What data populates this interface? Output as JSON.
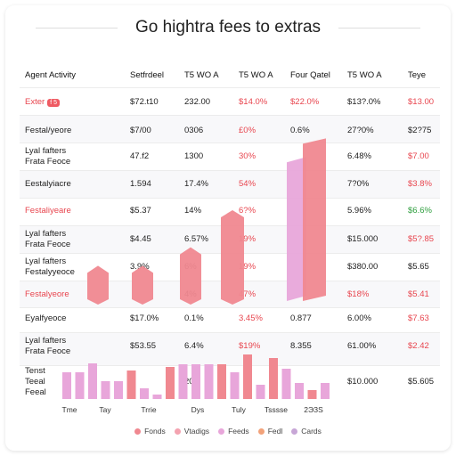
{
  "page": {
    "title": "Go hightra fees to extras"
  },
  "table": {
    "headers": [
      "Agent Activity",
      "Setfrdeel",
      "T5 WO A",
      "T5 WO A",
      "Four Qatel",
      "T5 WO A",
      "Teye"
    ],
    "rows": [
      {
        "label": [
          "Exter"
        ],
        "badge": "f 5",
        "label_color": "red",
        "cells": [
          {
            "v": "$72.t10"
          },
          {
            "v": "232.00"
          },
          {
            "v": "$14.0%",
            "c": "red"
          },
          {
            "v": "$22.0%",
            "c": "red"
          },
          {
            "v": "$13?.0%"
          },
          {
            "v": "$13.00",
            "c": "red"
          }
        ]
      },
      {
        "label": [
          "Festal/yeore"
        ],
        "cells": [
          {
            "v": "$7/00"
          },
          {
            "v": "0306"
          },
          {
            "v": "£0%",
            "c": "red"
          },
          {
            "v": "0.6%"
          },
          {
            "v": "27?0%"
          },
          {
            "v": "$2?75"
          }
        ]
      },
      {
        "label": [
          "Lyal fafters",
          "Frata Feoce"
        ],
        "cells": [
          {
            "v": "47.f2"
          },
          {
            "v": "1300"
          },
          {
            "v": "30%",
            "c": "red"
          },
          {
            "v": ""
          },
          {
            "v": "6.48%"
          },
          {
            "v": "$7.00",
            "c": "red"
          }
        ]
      },
      {
        "label": [
          "Eestalyiacre"
        ],
        "cells": [
          {
            "v": "1.594"
          },
          {
            "v": "17.4%"
          },
          {
            "v": "54%",
            "c": "red"
          },
          {
            "v": ""
          },
          {
            "v": "7?0%"
          },
          {
            "v": "$3.8%",
            "c": "red"
          }
        ]
      },
      {
        "label": [
          "Festaliyeare"
        ],
        "label_color": "red",
        "cells": [
          {
            "v": "$5.37"
          },
          {
            "v": "14%"
          },
          {
            "v": "6?%",
            "c": "red"
          },
          {
            "v": ""
          },
          {
            "v": "5.96%"
          },
          {
            "v": "$6.6%",
            "c": "green"
          }
        ]
      },
      {
        "label": [
          "Lyal fafters",
          "Frata Feoce"
        ],
        "cells": [
          {
            "v": "$4.45"
          },
          {
            "v": "6.57%"
          },
          {
            "v": "19%",
            "c": "red"
          },
          {
            "v": ""
          },
          {
            "v": "$15.000"
          },
          {
            "v": "$5?.85",
            "c": "red"
          }
        ]
      },
      {
        "label": [
          "Lyal fafters",
          "Festalyyeoce"
        ],
        "cells": [
          {
            "v": "3.9%"
          },
          {
            "v": "6%"
          },
          {
            "v": "19%",
            "c": "red"
          },
          {
            "v": ""
          },
          {
            "v": "$380.00"
          },
          {
            "v": "$5.65"
          }
        ]
      },
      {
        "label": [
          "Festalyeore"
        ],
        "label_color": "red",
        "cells": [
          {
            "v": ""
          },
          {
            "v": "4%"
          },
          {
            "v": "47%",
            "c": "red"
          },
          {
            "v": ""
          },
          {
            "v": "$18%",
            "c": "red"
          },
          {
            "v": "$5.41",
            "c": "red"
          }
        ]
      },
      {
        "label": [
          "Eyalfyeoce"
        ],
        "cells": [
          {
            "v": "$17.0%"
          },
          {
            "v": "0.1%"
          },
          {
            "v": "3.45%",
            "c": "red"
          },
          {
            "v": "0.877"
          },
          {
            "v": "6.00%"
          },
          {
            "v": "$7.63",
            "c": "red"
          }
        ]
      },
      {
        "label": [
          "Lyal fafters",
          "Frata Feoce"
        ],
        "cells": [
          {
            "v": "$53.55"
          },
          {
            "v": "6.4%"
          },
          {
            "v": "$19%",
            "c": "red"
          },
          {
            "v": "8.355"
          },
          {
            "v": "61.00%"
          },
          {
            "v": "$2.42",
            "c": "red"
          }
        ]
      },
      {
        "label": [
          "Tenst",
          "Teeal",
          "Feeal"
        ],
        "cells": [
          {
            "v": ""
          },
          {
            "v": "200"
          },
          {
            "v": ""
          },
          {
            "v": ""
          },
          {
            "v": "$10.000"
          },
          {
            "v": "$5.605"
          }
        ]
      }
    ]
  },
  "legend": [
    {
      "label": "Fonds",
      "color": "#f08890"
    },
    {
      "label": "Vtadigs",
      "color": "#f4a3b0"
    },
    {
      "label": "Feeds",
      "color": "#e8a6da"
    },
    {
      "label": "Fedl",
      "color": "#f2a27a"
    },
    {
      "label": "Cards",
      "color": "#c7a6d6"
    }
  ],
  "chart_data": {
    "type": "bar",
    "xlabel": "",
    "ylabel": "",
    "categories": [
      "Tme",
      "Tay",
      "Trrie",
      "Dys",
      "Tuly",
      "Tsssse",
      "2ЭЗS"
    ],
    "columns": [
      {
        "color": "#e8a6da",
        "value": 0.3
      },
      {
        "color": "#e8a6da",
        "value": 0.3
      },
      {
        "color": "#e8a6da",
        "value": 0.4
      },
      {
        "color": "#e8a6da",
        "value": 0.2
      },
      {
        "color": "#e8a6da",
        "value": 0.2
      },
      {
        "color": "#f08890",
        "value": 0.32
      },
      {
        "color": "#e8a6da",
        "value": 0.12
      },
      {
        "color": "#e8a6da",
        "value": 0.05
      },
      {
        "color": "#f08890",
        "value": 0.36
      },
      {
        "color": "#e8a6da",
        "value": 0.39
      },
      {
        "color": "#e8a6da",
        "value": 0.39
      },
      {
        "color": "#e8a6da",
        "value": 0.39
      },
      {
        "color": "#f08890",
        "value": 0.39
      },
      {
        "color": "#e8a6da",
        "value": 0.3
      },
      {
        "color": "#f08890",
        "value": 0.5
      },
      {
        "color": "#e8a6da",
        "value": 0.16
      },
      {
        "color": "#f08890",
        "value": 0.46
      },
      {
        "color": "#e8a6da",
        "value": 0.34
      },
      {
        "color": "#e8a6da",
        "value": 0.18
      },
      {
        "color": "#f08890",
        "value": 0.1
      },
      {
        "color": "#e8a6da",
        "value": 0.18
      }
    ],
    "columns_max": 1,
    "towers": [
      {
        "color": "#f08890",
        "value": 0.16,
        "shape": "hex"
      },
      {
        "color": "#f08890",
        "value": 0.16,
        "shape": "hex"
      },
      {
        "color": "#f08890",
        "value": 0.24,
        "shape": "hex"
      },
      {
        "color": "#f08890",
        "value": 0.4,
        "shape": "hex"
      },
      {
        "color": "#e8a6da",
        "value": 0.63,
        "shape": "slab"
      },
      {
        "color": "#f08890",
        "value": 0.71,
        "shape": "slab"
      }
    ],
    "towers_max": 1
  }
}
